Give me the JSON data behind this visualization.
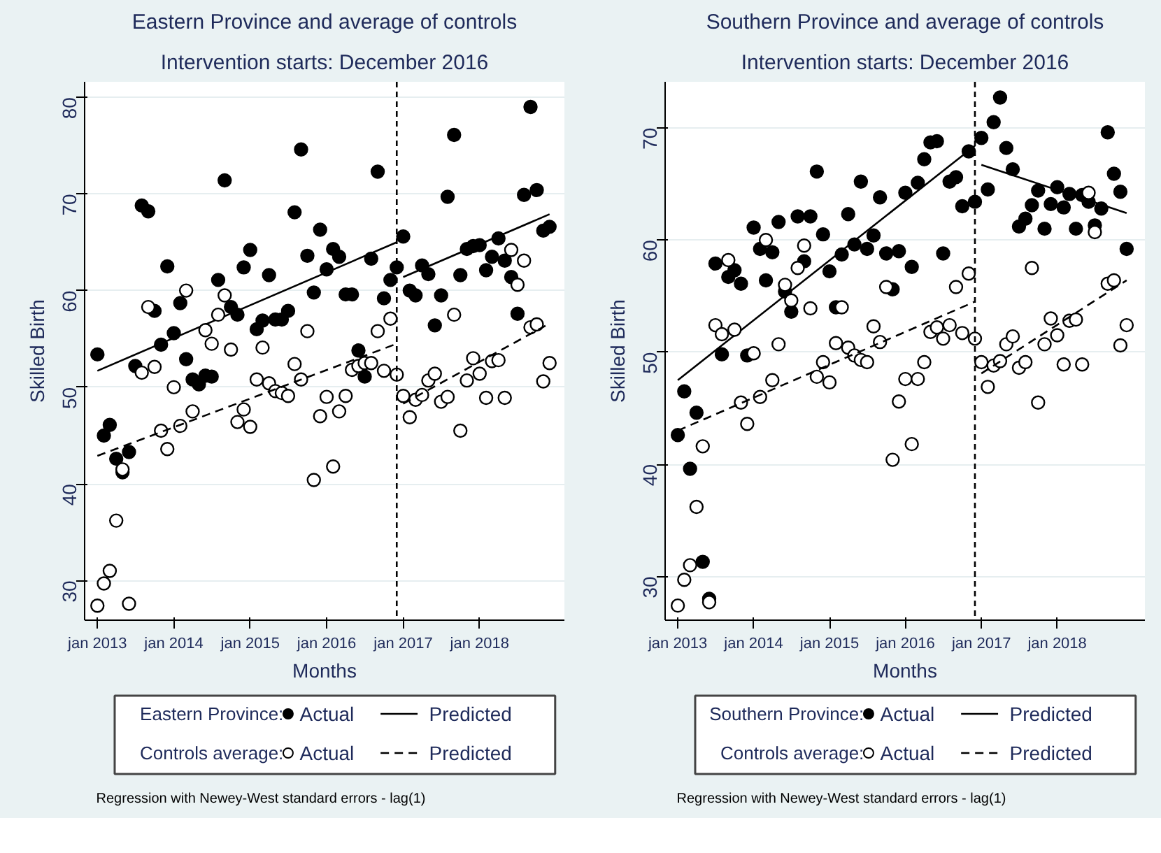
{
  "chart_data": [
    {
      "type": "scatter",
      "title": "Eastern Province and average of controls",
      "subtitle": "Intervention starts: December 2016",
      "xlabel": "Months",
      "ylabel": "Skilled Birth",
      "x": [
        "2013-01",
        "2013-02",
        "2013-03",
        "2013-04",
        "2013-05",
        "2013-06",
        "2013-07",
        "2013-08",
        "2013-09",
        "2013-10",
        "2013-11",
        "2013-12",
        "2014-01",
        "2014-02",
        "2014-03",
        "2014-04",
        "2014-05",
        "2014-06",
        "2014-07",
        "2014-08",
        "2014-09",
        "2014-10",
        "2014-11",
        "2014-12",
        "2015-01",
        "2015-02",
        "2015-03",
        "2015-04",
        "2015-05",
        "2015-06",
        "2015-07",
        "2015-08",
        "2015-09",
        "2015-10",
        "2015-11",
        "2015-12",
        "2016-01",
        "2016-02",
        "2016-03",
        "2016-04",
        "2016-05",
        "2016-06",
        "2016-07",
        "2016-08",
        "2016-09",
        "2016-10",
        "2016-11",
        "2016-12",
        "2017-01",
        "2017-02",
        "2017-03",
        "2017-04",
        "2017-05",
        "2017-06",
        "2017-07",
        "2017-08",
        "2017-09",
        "2017-10",
        "2017-11",
        "2017-12",
        "2018-01",
        "2018-02",
        "2018-03",
        "2018-04",
        "2018-05",
        "2018-06",
        "2018-07",
        "2018-08",
        "2018-09",
        "2018-10",
        "2018-11",
        "2018-12"
      ],
      "xlim": [
        "2012-11-01",
        "2019-02-10"
      ],
      "ylim": [
        25.9,
        81.6
      ],
      "xticks": [
        {
          "value": "2013-01",
          "label": "jan 2013"
        },
        {
          "value": "2014-01",
          "label": "jan 2014"
        },
        {
          "value": "2015-01",
          "label": "jan 2015"
        },
        {
          "value": "2016-01",
          "label": "jan 2016"
        },
        {
          "value": "2017-01",
          "label": "jan 2017"
        },
        {
          "value": "2018-01",
          "label": "jan 2018"
        }
      ],
      "yticks": [
        30,
        40,
        50,
        60,
        70,
        80
      ],
      "grid": "y",
      "legend": "bottom",
      "ref_lines": [
        {
          "axis": "x",
          "value": "2016-12",
          "color": "#000000",
          "line_style": "dashed"
        }
      ],
      "annotations": [
        "Eastern Province:",
        "Controls average:",
        "Regression with Newey-West standard errors - lag(1)"
      ],
      "series": [
        {
          "name": "Actual",
          "type": "scatter",
          "marker": "circle",
          "color": "#000000",
          "values": [
            53.4,
            45.0,
            46.1,
            42.6,
            41.2,
            43.3,
            52.2,
            68.8,
            68.2,
            57.9,
            54.4,
            62.5,
            55.6,
            58.7,
            52.9,
            50.8,
            50.3,
            51.2,
            51.1,
            61.1,
            71.4,
            58.3,
            57.5,
            62.4,
            64.2,
            56.0,
            56.9,
            61.6,
            57.0,
            57.0,
            57.9,
            68.1,
            74.6,
            63.6,
            59.8,
            66.3,
            62.2,
            64.3,
            63.5,
            59.6,
            59.6,
            53.8,
            51.1,
            63.3,
            72.3,
            59.2,
            61.1,
            62.4,
            65.6,
            60.0,
            59.5,
            62.6,
            61.7,
            56.4,
            59.5,
            69.7,
            76.1,
            61.6,
            64.3,
            64.6,
            64.7,
            62.1,
            63.5,
            65.4,
            63.1,
            61.4,
            57.6,
            69.9,
            79.0,
            70.4,
            66.2,
            66.6
          ]
        },
        {
          "name": "Predicted",
          "type": "line",
          "marker": "none",
          "line_style": "solid",
          "color": "#000000",
          "x": [
            "2013-01",
            "2016-12",
            "2016-12-16",
            "2017-01",
            "2018-12"
          ],
          "values": [
            51.7,
            65.0,
            null,
            61.4,
            67.9
          ]
        },
        {
          "name": "Actual",
          "type": "scatter",
          "marker": "circle",
          "color": "#ffffff",
          "values": [
            27.4,
            29.7,
            31.0,
            36.2,
            41.5,
            27.6,
            null,
            51.5,
            58.3,
            52.1,
            45.5,
            43.6,
            50.0,
            46.0,
            60.0,
            47.5,
            null,
            55.9,
            54.5,
            57.5,
            59.5,
            53.9,
            46.4,
            47.7,
            45.9,
            50.8,
            54.1,
            50.4,
            49.6,
            49.4,
            49.1,
            52.4,
            50.8,
            55.8,
            40.4,
            47.0,
            49.0,
            41.8,
            47.5,
            49.1,
            51.8,
            52.2,
            52.5,
            52.5,
            55.8,
            51.7,
            57.1,
            51.3,
            49.1,
            46.9,
            48.7,
            49.2,
            50.7,
            51.4,
            48.5,
            49.0,
            57.5,
            45.5,
            50.7,
            53.0,
            51.4,
            48.9,
            52.7,
            52.8,
            48.9,
            64.2,
            60.6,
            63.1,
            56.2,
            56.5,
            50.6,
            52.5
          ]
        },
        {
          "name": "Predicted",
          "type": "line",
          "marker": "none",
          "line_style": "dashed",
          "color": "#000000",
          "x": [
            "2013-01",
            "2016-12",
            "2016-12-16",
            "2017-01",
            "2018-12"
          ],
          "values": [
            42.9,
            54.5,
            null,
            48.3,
            56.6
          ]
        }
      ]
    },
    {
      "type": "scatter",
      "title": "Southern Province and average of controls",
      "subtitle": "Intervention starts: December 2016",
      "xlabel": "Months",
      "ylabel": "Skilled Birth",
      "x": [
        "2013-01",
        "2013-02",
        "2013-03",
        "2013-04",
        "2013-05",
        "2013-06",
        "2013-07",
        "2013-08",
        "2013-09",
        "2013-10",
        "2013-11",
        "2013-12",
        "2014-01",
        "2014-02",
        "2014-03",
        "2014-04",
        "2014-05",
        "2014-06",
        "2014-07",
        "2014-08",
        "2014-09",
        "2014-10",
        "2014-11",
        "2014-12",
        "2015-01",
        "2015-02",
        "2015-03",
        "2015-04",
        "2015-05",
        "2015-06",
        "2015-07",
        "2015-08",
        "2015-09",
        "2015-10",
        "2015-11",
        "2015-12",
        "2016-01",
        "2016-02",
        "2016-03",
        "2016-04",
        "2016-05",
        "2016-06",
        "2016-07",
        "2016-08",
        "2016-09",
        "2016-10",
        "2016-11",
        "2016-12",
        "2017-01",
        "2017-02",
        "2017-03",
        "2017-04",
        "2017-05",
        "2017-06",
        "2017-07",
        "2017-08",
        "2017-09",
        "2017-10",
        "2017-11",
        "2017-12",
        "2018-01",
        "2018-02",
        "2018-03",
        "2018-04",
        "2018-05",
        "2018-06",
        "2018-07",
        "2018-08",
        "2018-09",
        "2018-10",
        "2018-11",
        "2018-12"
      ],
      "xlim": [
        "2012-11-01",
        "2019-02-27"
      ],
      "ylim": [
        26.1,
        74.1
      ],
      "xticks": [
        {
          "value": "2013-01",
          "label": "jan 2013"
        },
        {
          "value": "2014-01",
          "label": "jan 2014"
        },
        {
          "value": "2015-01",
          "label": "jan 2015"
        },
        {
          "value": "2016-01",
          "label": "jan 2016"
        },
        {
          "value": "2017-01",
          "label": "jan 2017"
        },
        {
          "value": "2018-01",
          "label": "jan 2018"
        }
      ],
      "yticks": [
        30,
        40,
        50,
        60,
        70
      ],
      "grid": "y",
      "legend": "bottom",
      "ref_lines": [
        {
          "axis": "x",
          "value": "2016-12",
          "color": "#000000",
          "line_style": "dashed"
        }
      ],
      "annotations": [
        "Southern Province:",
        "Controls average:",
        "Regression with Newey-West standard errors - lag(1)"
      ],
      "series": [
        {
          "name": "Actual",
          "type": "scatter",
          "marker": "circle",
          "color": "#000000",
          "values": [
            42.6,
            46.5,
            39.6,
            44.6,
            31.3,
            28.0,
            57.9,
            49.8,
            56.7,
            57.3,
            56.1,
            49.7,
            61.1,
            59.2,
            56.4,
            58.9,
            61.6,
            55.4,
            53.6,
            62.1,
            58.1,
            62.1,
            66.1,
            60.5,
            57.2,
            54.0,
            58.7,
            62.3,
            59.6,
            65.2,
            59.2,
            60.4,
            63.8,
            58.8,
            55.6,
            59.0,
            64.2,
            57.6,
            65.1,
            67.2,
            68.7,
            68.8,
            58.8,
            65.2,
            65.6,
            63.0,
            67.9,
            63.4,
            69.1,
            64.5,
            70.5,
            72.7,
            68.2,
            66.3,
            61.2,
            61.9,
            63.1,
            64.4,
            61.0,
            63.2,
            64.7,
            62.9,
            64.1,
            61.0,
            64.0,
            63.4,
            61.3,
            62.8,
            69.6,
            65.9,
            64.3,
            59.2
          ]
        },
        {
          "name": "Predicted",
          "type": "line",
          "marker": "none",
          "line_style": "solid",
          "color": "#000000",
          "x": [
            "2013-01",
            "2016-12",
            "2016-12-16",
            "2017-01",
            "2018-12"
          ],
          "values": [
            47.5,
            68.4,
            null,
            66.7,
            62.4
          ]
        },
        {
          "name": "Actual",
          "type": "scatter",
          "marker": "circle",
          "color": "#ffffff",
          "values": [
            27.4,
            29.7,
            31.0,
            36.2,
            41.6,
            27.7,
            52.4,
            51.6,
            58.2,
            52.0,
            45.5,
            43.6,
            49.9,
            46.0,
            60.0,
            47.5,
            50.7,
            56.0,
            54.6,
            57.5,
            59.5,
            53.9,
            47.8,
            49.1,
            47.3,
            50.8,
            54.0,
            50.4,
            49.7,
            49.3,
            49.1,
            52.3,
            50.9,
            55.8,
            40.4,
            45.6,
            47.6,
            41.8,
            47.6,
            49.1,
            51.8,
            52.2,
            51.2,
            52.4,
            55.8,
            51.7,
            57.0,
            51.2,
            49.1,
            46.9,
            48.8,
            49.2,
            50.7,
            51.4,
            48.6,
            49.1,
            57.5,
            45.5,
            50.7,
            53.0,
            51.5,
            48.9,
            52.8,
            52.9,
            48.9,
            64.2,
            60.7,
            null,
            56.1,
            56.4,
            50.6,
            52.4
          ]
        },
        {
          "name": "Predicted",
          "type": "line",
          "marker": "none",
          "line_style": "dashed",
          "color": "#000000",
          "x": [
            "2013-01",
            "2016-12",
            "2016-12-16",
            "2017-01",
            "2018-12"
          ],
          "values": [
            43.0,
            54.5,
            null,
            48.1,
            56.4
          ]
        }
      ]
    }
  ]
}
